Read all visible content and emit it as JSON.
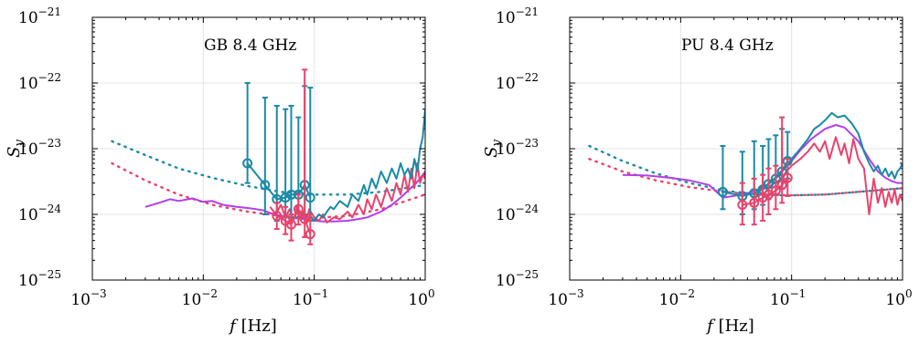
{
  "chart_data": [
    {
      "type": "line",
      "title": "GB 8.4 GHz",
      "xlabel_var": "f",
      "xlabel_unit": "[Hz]",
      "ylabel": "S",
      "ylabel_sub": "y",
      "xscale": "log",
      "yscale": "log",
      "xlim": [
        0.001,
        1
      ],
      "ylim": [
        1e-25,
        1e-21
      ],
      "grid": true,
      "x_ticks": [
        {
          "base": "10",
          "exp": "−3"
        },
        {
          "base": "10",
          "exp": "−2"
        },
        {
          "base": "10",
          "exp": "−1"
        },
        {
          "base": "10",
          "exp": "0"
        }
      ],
      "y_ticks": [
        {
          "base": "10",
          "exp": "−25"
        },
        {
          "base": "10",
          "exp": "−24"
        },
        {
          "base": "10",
          "exp": "−23"
        },
        {
          "base": "10",
          "exp": "−22"
        },
        {
          "base": "10",
          "exp": "−21"
        }
      ],
      "colors": {
        "teal": "#1a8aa6",
        "pink": "#e8436b",
        "purple": "#b43ee8"
      },
      "series": [
        {
          "color": "teal",
          "style": "dotted",
          "x": [
            0.0015,
            0.003,
            0.006,
            0.012,
            0.025,
            0.05,
            0.1,
            0.2,
            0.4,
            1.0
          ],
          "y": [
            1.3e-23,
            8e-24,
            5e-24,
            3.6e-24,
            2.7e-24,
            2.2e-24,
            2e-24,
            2e-24,
            2.2e-24,
            2.8e-24
          ]
        },
        {
          "color": "pink",
          "style": "dotted",
          "x": [
            0.0015,
            0.003,
            0.006,
            0.012,
            0.025,
            0.05,
            0.1,
            0.2,
            0.4,
            1.0
          ],
          "y": [
            6e-24,
            3.3e-24,
            2e-24,
            1.4e-24,
            1.1e-24,
            9.5e-25,
            8.8e-25,
            9.5e-25,
            1.2e-24,
            2e-24
          ]
        },
        {
          "color": "purple",
          "style": "solid",
          "x": [
            0.003,
            0.004,
            0.005,
            0.006,
            0.008,
            0.01,
            0.012,
            0.015,
            0.02,
            0.025,
            0.03,
            0.035,
            0.04,
            0.05,
            0.06,
            0.07,
            0.08,
            0.1,
            0.12,
            0.15,
            0.2,
            0.25,
            0.3,
            0.4,
            0.5,
            0.6,
            0.7,
            0.8,
            0.9,
            1.0
          ],
          "y": [
            1.3e-24,
            1.5e-24,
            1.7e-24,
            1.6e-24,
            1.75e-24,
            1.55e-24,
            1.6e-24,
            1.4e-24,
            1.3e-24,
            1.25e-24,
            1.2e-24,
            1.15e-24,
            1.05e-24,
            9.5e-25,
            9e-25,
            8.7e-25,
            8.5e-25,
            8e-25,
            7.8e-25,
            7.8e-25,
            8e-25,
            8.5e-25,
            9e-25,
            1.1e-24,
            1.4e-24,
            1.8e-24,
            2.3e-24,
            2.8e-24,
            3.5e-24,
            4.5e-24
          ]
        },
        {
          "color": "pink",
          "style": "solid",
          "x": [
            0.04,
            0.045,
            0.05,
            0.055,
            0.06,
            0.065,
            0.07,
            0.075,
            0.08,
            0.085,
            0.09,
            0.1,
            0.11,
            0.12,
            0.13,
            0.15,
            0.17,
            0.2,
            0.22,
            0.25,
            0.28,
            0.3,
            0.33,
            0.36,
            0.4,
            0.45,
            0.5,
            0.55,
            0.6,
            0.65,
            0.7,
            0.75,
            0.8,
            0.85,
            0.9,
            0.95,
            1.0
          ],
          "y": [
            1.3e-24,
            1e-24,
            1.4e-24,
            9e-25,
            1.2e-24,
            8e-25,
            1.3e-24,
            9e-25,
            1.1e-24,
            8e-25,
            1.2e-24,
            9e-25,
            8e-25,
            1e-24,
            7.5e-25,
            9e-25,
            8.5e-25,
            1.1e-24,
            9e-25,
            1.4e-24,
            1e-24,
            1.7e-24,
            1.2e-24,
            2e-24,
            1.3e-24,
            2.5e-24,
            1.6e-24,
            3e-24,
            2e-24,
            4e-24,
            2.2e-24,
            5e-24,
            2.5e-24,
            6e-24,
            3e-24,
            4e-24,
            3.5e-24
          ]
        },
        {
          "color": "teal",
          "style": "solid",
          "x": [
            0.08,
            0.09,
            0.1,
            0.11,
            0.12,
            0.13,
            0.14,
            0.15,
            0.17,
            0.2,
            0.22,
            0.25,
            0.28,
            0.3,
            0.33,
            0.36,
            0.4,
            0.45,
            0.5,
            0.55,
            0.6,
            0.65,
            0.7,
            0.75,
            0.8,
            0.85,
            0.9,
            0.95,
            1.0
          ],
          "y": [
            9e-25,
            1e-24,
            8e-25,
            1e-24,
            9e-25,
            1.1e-24,
            1.3e-24,
            1.2e-24,
            1.6e-24,
            1.3e-24,
            2e-24,
            1.6e-24,
            2.8e-24,
            2e-24,
            3.5e-24,
            2.5e-24,
            4.5e-24,
            3e-24,
            5e-24,
            3.5e-24,
            6e-24,
            4e-24,
            5e-24,
            3.5e-24,
            7e-24,
            4.5e-24,
            1e-23,
            1.5e-23,
            4e-23
          ]
        }
      ],
      "error_series": [
        {
          "color": "teal",
          "x": [
            0.025,
            0.036,
            0.046,
            0.055,
            0.062,
            0.072,
            0.082,
            0.092
          ],
          "y": [
            6e-24,
            2.8e-24,
            1.7e-24,
            1.8e-24,
            2e-24,
            2e-24,
            2.8e-24,
            1.8e-24
          ],
          "lo": [
            3e-24,
            1e-24,
            8e-25,
            9e-25,
            9e-25,
            9e-25,
            1e-24,
            8e-25
          ],
          "hi": [
            1e-22,
            6e-23,
            4.5e-23,
            4e-23,
            4.5e-23,
            3e-23,
            9e-23,
            8.5e-23
          ]
        },
        {
          "color": "pink",
          "x": [
            0.046,
            0.055,
            0.062,
            0.072,
            0.082,
            0.092
          ],
          "y": [
            9.5e-25,
            8e-25,
            7e-25,
            1.2e-24,
            8.5e-25,
            5e-25
          ],
          "lo": [
            6e-25,
            5e-25,
            4e-25,
            7e-25,
            4.5e-25,
            3.5e-25
          ],
          "hi": [
            1.5e-24,
            1.3e-24,
            1e-24,
            2e-24,
            1.6e-22,
            1e-24
          ]
        }
      ]
    },
    {
      "type": "line",
      "title": "PU 8.4 GHz",
      "xlabel_var": "f",
      "xlabel_unit": "[Hz]",
      "ylabel": "S",
      "ylabel_sub": "y",
      "xscale": "log",
      "yscale": "log",
      "xlim": [
        0.001,
        1
      ],
      "ylim": [
        1e-25,
        1e-21
      ],
      "grid": true,
      "x_ticks": [
        {
          "base": "10",
          "exp": "−3"
        },
        {
          "base": "10",
          "exp": "−2"
        },
        {
          "base": "10",
          "exp": "−1"
        },
        {
          "base": "10",
          "exp": "0"
        }
      ],
      "y_ticks": [
        {
          "base": "10",
          "exp": "−25"
        },
        {
          "base": "10",
          "exp": "−24"
        },
        {
          "base": "10",
          "exp": "−23"
        },
        {
          "base": "10",
          "exp": "−22"
        },
        {
          "base": "10",
          "exp": "−21"
        }
      ],
      "colors": {
        "teal": "#1a8aa6",
        "pink": "#e8436b",
        "purple": "#b43ee8"
      },
      "series": [
        {
          "color": "teal",
          "style": "dotted",
          "x": [
            0.0015,
            0.003,
            0.006,
            0.012,
            0.025,
            0.05,
            0.1,
            0.2,
            0.4,
            1.0
          ],
          "y": [
            1.1e-23,
            6.5e-24,
            4.2e-24,
            3e-24,
            2.3e-24,
            2e-24,
            1.95e-24,
            2e-24,
            2.2e-24,
            2.5e-24
          ]
        },
        {
          "color": "pink",
          "style": "dotted",
          "x": [
            0.0015,
            0.003,
            0.006,
            0.012,
            0.025,
            0.05,
            0.1,
            0.2,
            0.4,
            1.0
          ],
          "y": [
            7e-24,
            4.5e-24,
            3.3e-24,
            2.6e-24,
            2.2e-24,
            2e-24,
            1.95e-24,
            2e-24,
            2.2e-24,
            2.5e-24
          ]
        },
        {
          "color": "purple",
          "style": "solid",
          "x": [
            0.003,
            0.005,
            0.008,
            0.012,
            0.018,
            0.024,
            0.03,
            0.04,
            0.05,
            0.06,
            0.07,
            0.08,
            0.1,
            0.12,
            0.15,
            0.2,
            0.25,
            0.3,
            0.4,
            0.5,
            0.6,
            0.7,
            0.8,
            0.9,
            1.0
          ],
          "y": [
            4e-24,
            3.9e-24,
            3.6e-24,
            3.3e-24,
            2.8e-24,
            1.8e-24,
            1.9e-24,
            2.1e-24,
            2.4e-24,
            2.8e-24,
            3.5e-24,
            4.5e-24,
            6.5e-24,
            9.5e-24,
            1.4e-23,
            2e-23,
            2.3e-23,
            2.1e-23,
            1.3e-23,
            7e-24,
            4.5e-24,
            3.6e-24,
            3.2e-24,
            3e-24,
            3e-24
          ]
        },
        {
          "color": "pink",
          "style": "solid",
          "x": [
            0.05,
            0.06,
            0.07,
            0.08,
            0.09,
            0.1,
            0.12,
            0.14,
            0.16,
            0.18,
            0.2,
            0.22,
            0.25,
            0.28,
            0.3,
            0.33,
            0.36,
            0.4,
            0.45,
            0.5,
            0.55,
            0.6,
            0.65,
            0.7,
            0.75,
            0.8,
            0.85,
            0.9,
            0.95,
            1.0
          ],
          "y": [
            2.4e-24,
            2.5e-24,
            3e-24,
            3.4e-24,
            4.5e-24,
            5.5e-24,
            7e-24,
            9e-24,
            1.2e-23,
            9e-24,
            1.3e-23,
            7e-24,
            1.5e-23,
            8e-24,
            1.2e-23,
            6e-24,
            1.4e-23,
            7e-24,
            5e-24,
            1e-24,
            3.5e-24,
            1.5e-24,
            2.5e-24,
            1.3e-24,
            2.2e-24,
            1.5e-24,
            2.4e-24,
            1.4e-24,
            2e-24,
            1.6e-24
          ]
        },
        {
          "color": "teal",
          "style": "solid",
          "x": [
            0.05,
            0.06,
            0.07,
            0.08,
            0.09,
            0.1,
            0.12,
            0.14,
            0.16,
            0.18,
            0.2,
            0.23,
            0.26,
            0.3,
            0.35,
            0.4,
            0.45,
            0.5,
            0.55,
            0.6,
            0.65,
            0.7,
            0.75,
            0.8,
            0.85,
            0.9,
            0.95,
            1.0
          ],
          "y": [
            2.5e-24,
            2.8e-24,
            3.5e-24,
            4.2e-24,
            5.5e-24,
            7e-24,
            1e-23,
            1.4e-23,
            2e-23,
            2.3e-23,
            2.7e-23,
            3.5e-23,
            3e-23,
            3.2e-23,
            2.4e-23,
            1.7e-23,
            9e-24,
            6e-24,
            4.5e-24,
            5.5e-24,
            4e-24,
            5e-24,
            3.8e-24,
            4.5e-24,
            3.5e-24,
            4.5e-24,
            5e-24,
            6e-24
          ]
        }
      ],
      "error_series": [
        {
          "color": "teal",
          "x": [
            0.024,
            0.036,
            0.046,
            0.055,
            0.062,
            0.072,
            0.082,
            0.092
          ],
          "y": [
            2.2e-24,
            1.9e-24,
            2.1e-24,
            2.4e-24,
            2.9e-24,
            3.5e-24,
            4.5e-24,
            6.5e-24
          ],
          "lo": [
            1.2e-24,
            1e-24,
            1.2e-24,
            1.4e-24,
            1.7e-24,
            2e-24,
            2.5e-24,
            3.5e-24
          ],
          "hi": [
            1.1e-23,
            9e-24,
            1.3e-23,
            1.1e-23,
            1.4e-23,
            1.6e-23,
            2e-23,
            1.8e-23
          ]
        },
        {
          "color": "pink",
          "x": [
            0.036,
            0.046,
            0.055,
            0.062,
            0.072,
            0.082,
            0.092
          ],
          "y": [
            1.4e-24,
            1.5e-24,
            1.8e-24,
            2e-24,
            2.3e-24,
            2.8e-24,
            3.6e-24
          ],
          "lo": [
            7e-25,
            7e-25,
            8e-25,
            1e-24,
            1.2e-24,
            1.5e-24,
            1.9e-24
          ],
          "hi": [
            3e-24,
            3.5e-24,
            4e-24,
            5e-24,
            5.5e-24,
            3e-23,
            7e-24
          ]
        }
      ]
    }
  ]
}
